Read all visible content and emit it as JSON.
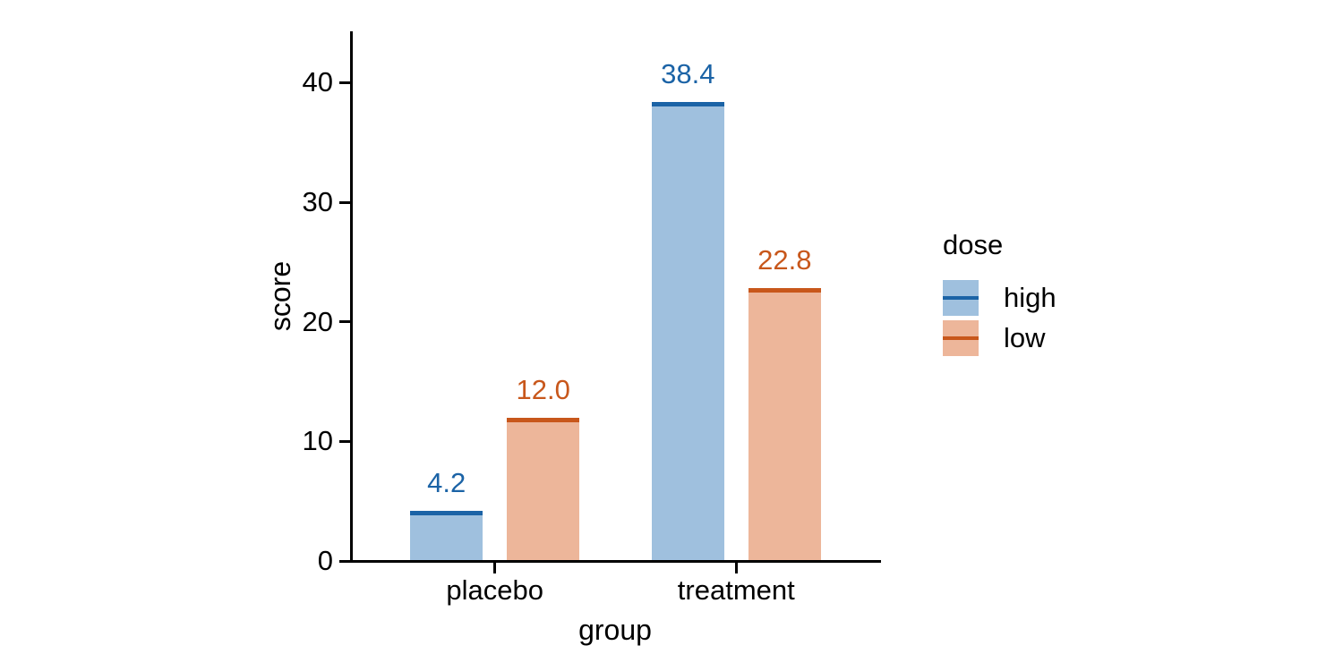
{
  "chart_data": {
    "type": "bar",
    "title": "",
    "xlabel": "group",
    "ylabel": "score",
    "categories": [
      "placebo",
      "treatment"
    ],
    "series": [
      {
        "name": "high",
        "values": [
          4.2,
          38.4
        ],
        "value_labels": [
          "4.2",
          "38.4"
        ],
        "fill_color": "#9fc0de",
        "line_color": "#1b63a6"
      },
      {
        "name": "low",
        "values": [
          12.0,
          22.8
        ],
        "value_labels": [
          "12.0",
          "22.8"
        ],
        "fill_color": "#edb69a",
        "line_color": "#c8571b"
      }
    ],
    "y_ticks": [
      0,
      10,
      20,
      30,
      40
    ],
    "ylim": [
      0,
      44.3
    ],
    "grid": false,
    "axis_color": "#000000",
    "text_color": "#000000",
    "background_color": "#ffffff",
    "legend": {
      "title": "dose",
      "position": "right",
      "entries": [
        "high",
        "low"
      ]
    }
  }
}
